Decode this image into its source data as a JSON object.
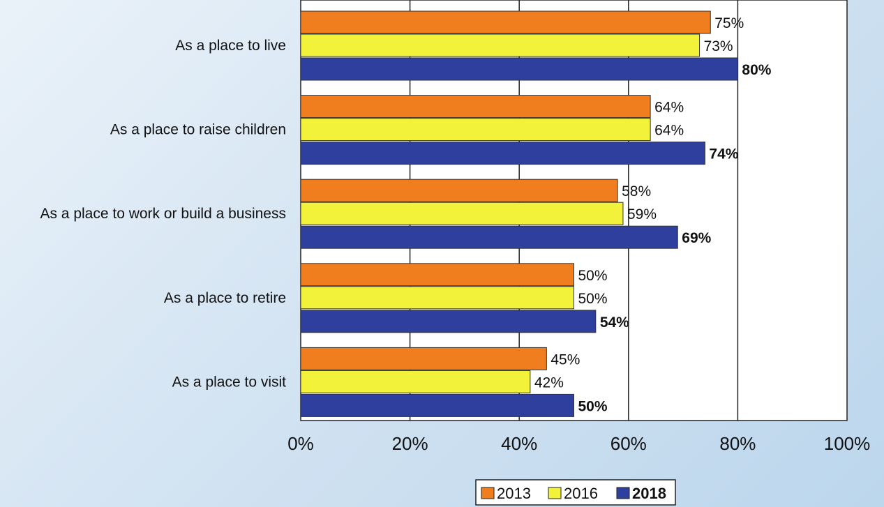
{
  "chart_data": {
    "type": "bar",
    "orientation": "horizontal",
    "title": "",
    "xlabel": "",
    "ylabel": "",
    "xlim": [
      0,
      100
    ],
    "x_ticks": [
      "0%",
      "20%",
      "40%",
      "60%",
      "80%",
      "100%"
    ],
    "grid": "vertical",
    "legend": "bottom-center",
    "categories": [
      "As a place to live",
      "As a place to raise children",
      "As a place to work or build a business",
      "As a place to retire",
      "As a place to visit"
    ],
    "series": [
      {
        "name": "2013",
        "color": "#f07d1e",
        "bold": false,
        "values": [
          75,
          64,
          58,
          50,
          45
        ],
        "labels": [
          "75%",
          "64%",
          "58%",
          "50%",
          "45%"
        ]
      },
      {
        "name": "2016",
        "color": "#f2f23a",
        "bold": false,
        "values": [
          73,
          64,
          59,
          50,
          42
        ],
        "labels": [
          "73%",
          "64%",
          "59%",
          "50%",
          "42%"
        ]
      },
      {
        "name": "2018",
        "color": "#2e3f9e",
        "bold": true,
        "values": [
          80,
          74,
          69,
          54,
          50
        ],
        "labels": [
          "80%",
          "74%",
          "69%",
          "54%",
          "50%"
        ]
      }
    ]
  }
}
